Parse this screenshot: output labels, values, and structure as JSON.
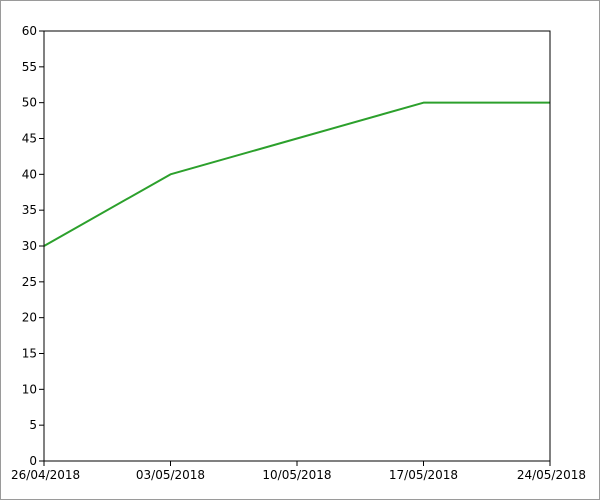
{
  "chart_data": {
    "type": "line",
    "title": "",
    "xlabel": "",
    "ylabel": "",
    "x_ticks": [
      "26/04/2018",
      "03/05/2018",
      "10/05/2018",
      "17/05/2018",
      "24/05/2018"
    ],
    "y_ticks": [
      "0",
      "5",
      "10",
      "15",
      "20",
      "25",
      "30",
      "35",
      "40",
      "45",
      "50",
      "55",
      "60"
    ],
    "xlim": [
      "26/04/2018",
      "24/05/2018"
    ],
    "ylim": [
      0,
      60
    ],
    "grid": false,
    "legend": "none",
    "series": [
      {
        "color": "#2ca02c",
        "points": [
          {
            "x": "26/04/2018",
            "y": 30
          },
          {
            "x": "03/05/2018",
            "y": 40
          },
          {
            "x": "10/05/2018",
            "y": 45
          },
          {
            "x": "17/05/2018",
            "y": 50
          },
          {
            "x": "24/05/2018",
            "y": 50
          }
        ]
      }
    ]
  }
}
